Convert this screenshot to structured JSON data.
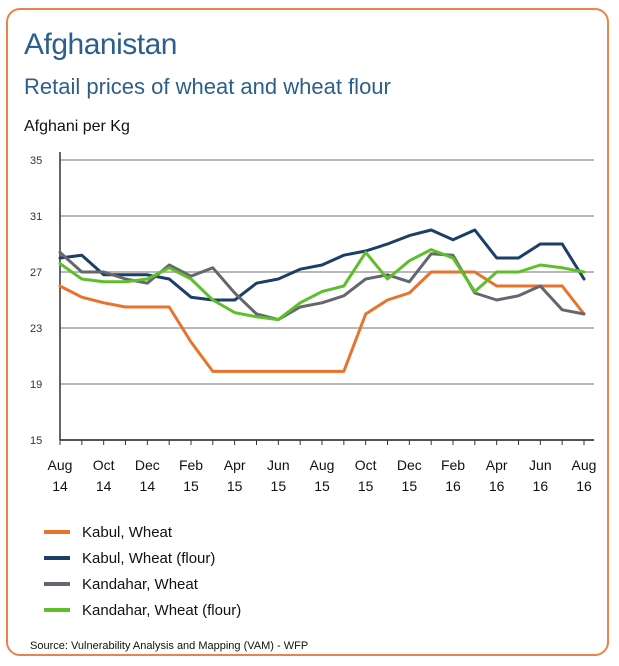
{
  "header": {
    "title": "Afghanistan",
    "subtitle": "Retail prices of wheat and wheat flour",
    "unit": "Afghani per Kg"
  },
  "source": "Source: Vulnerability Analysis and Mapping (VAM) - WFP",
  "chart_data": {
    "type": "line",
    "title": "Retail prices of wheat and wheat flour",
    "ylabel": "Afghani per Kg",
    "ylim": [
      15,
      35
    ],
    "yticks": [
      15,
      19,
      23,
      27,
      31,
      35
    ],
    "grid": true,
    "legend_position": "bottom",
    "x": [
      "Aug 14",
      "Sep 14",
      "Oct 14",
      "Nov 14",
      "Dec 14",
      "Jan 15",
      "Feb 15",
      "Mar 15",
      "Apr 15",
      "May 15",
      "Jun 15",
      "Jul 15",
      "Aug 15",
      "Sep 15",
      "Oct 15",
      "Nov 15",
      "Dec 15",
      "Jan 16",
      "Feb 16",
      "Mar 16",
      "Apr 16",
      "May 16",
      "Jun 16",
      "Jul 16",
      "Aug 16"
    ],
    "xticks": [
      {
        "index": 0,
        "line1": "Aug",
        "line2": "14"
      },
      {
        "index": 2,
        "line1": "Oct",
        "line2": "14"
      },
      {
        "index": 4,
        "line1": "Dec",
        "line2": "14"
      },
      {
        "index": 6,
        "line1": "Feb",
        "line2": "15"
      },
      {
        "index": 8,
        "line1": "Apr",
        "line2": "15"
      },
      {
        "index": 10,
        "line1": "Jun",
        "line2": "15"
      },
      {
        "index": 12,
        "line1": "Aug",
        "line2": "15"
      },
      {
        "index": 14,
        "line1": "Oct",
        "line2": "15"
      },
      {
        "index": 16,
        "line1": "Dec",
        "line2": "15"
      },
      {
        "index": 18,
        "line1": "Feb",
        "line2": "16"
      },
      {
        "index": 20,
        "line1": "Apr",
        "line2": "16"
      },
      {
        "index": 22,
        "line1": "Jun",
        "line2": "16"
      },
      {
        "index": 24,
        "line1": "Aug",
        "line2": "16"
      }
    ],
    "series": [
      {
        "name": "Kabul, Wheat",
        "color": "#e8732d",
        "values": [
          26.0,
          25.2,
          24.8,
          24.5,
          24.5,
          24.5,
          22.0,
          19.9,
          19.9,
          19.9,
          19.9,
          19.9,
          19.9,
          19.9,
          24.0,
          25.0,
          25.5,
          27.0,
          27.0,
          27.0,
          26.0,
          26.0,
          26.0,
          26.0,
          24.0
        ]
      },
      {
        "name": "Kabul, Wheat (flour)",
        "color": "#1b3f66",
        "values": [
          28.0,
          28.2,
          26.8,
          26.8,
          26.8,
          26.5,
          25.2,
          25.0,
          25.0,
          26.2,
          26.5,
          27.2,
          27.5,
          28.2,
          28.5,
          29.0,
          29.6,
          30.0,
          29.3,
          30.0,
          28.0,
          28.0,
          29.0,
          29.0,
          26.5
        ]
      },
      {
        "name": "Kandahar, Wheat",
        "color": "#66666e",
        "values": [
          28.4,
          27.0,
          27.0,
          26.5,
          26.2,
          27.5,
          26.7,
          27.3,
          25.5,
          24.0,
          23.6,
          24.5,
          24.8,
          25.3,
          26.5,
          26.8,
          26.3,
          28.3,
          28.2,
          25.5,
          25.0,
          25.3,
          26.0,
          24.3,
          24.0
        ]
      },
      {
        "name": "Kandahar, Wheat (flour)",
        "color": "#5fbf2a",
        "values": [
          27.6,
          26.5,
          26.3,
          26.3,
          26.5,
          27.3,
          26.5,
          25.0,
          24.1,
          23.8,
          23.6,
          24.8,
          25.6,
          26.0,
          28.4,
          26.5,
          27.8,
          28.6,
          28.0,
          25.6,
          27.0,
          27.0,
          27.5,
          27.3,
          27.0
        ]
      }
    ]
  }
}
